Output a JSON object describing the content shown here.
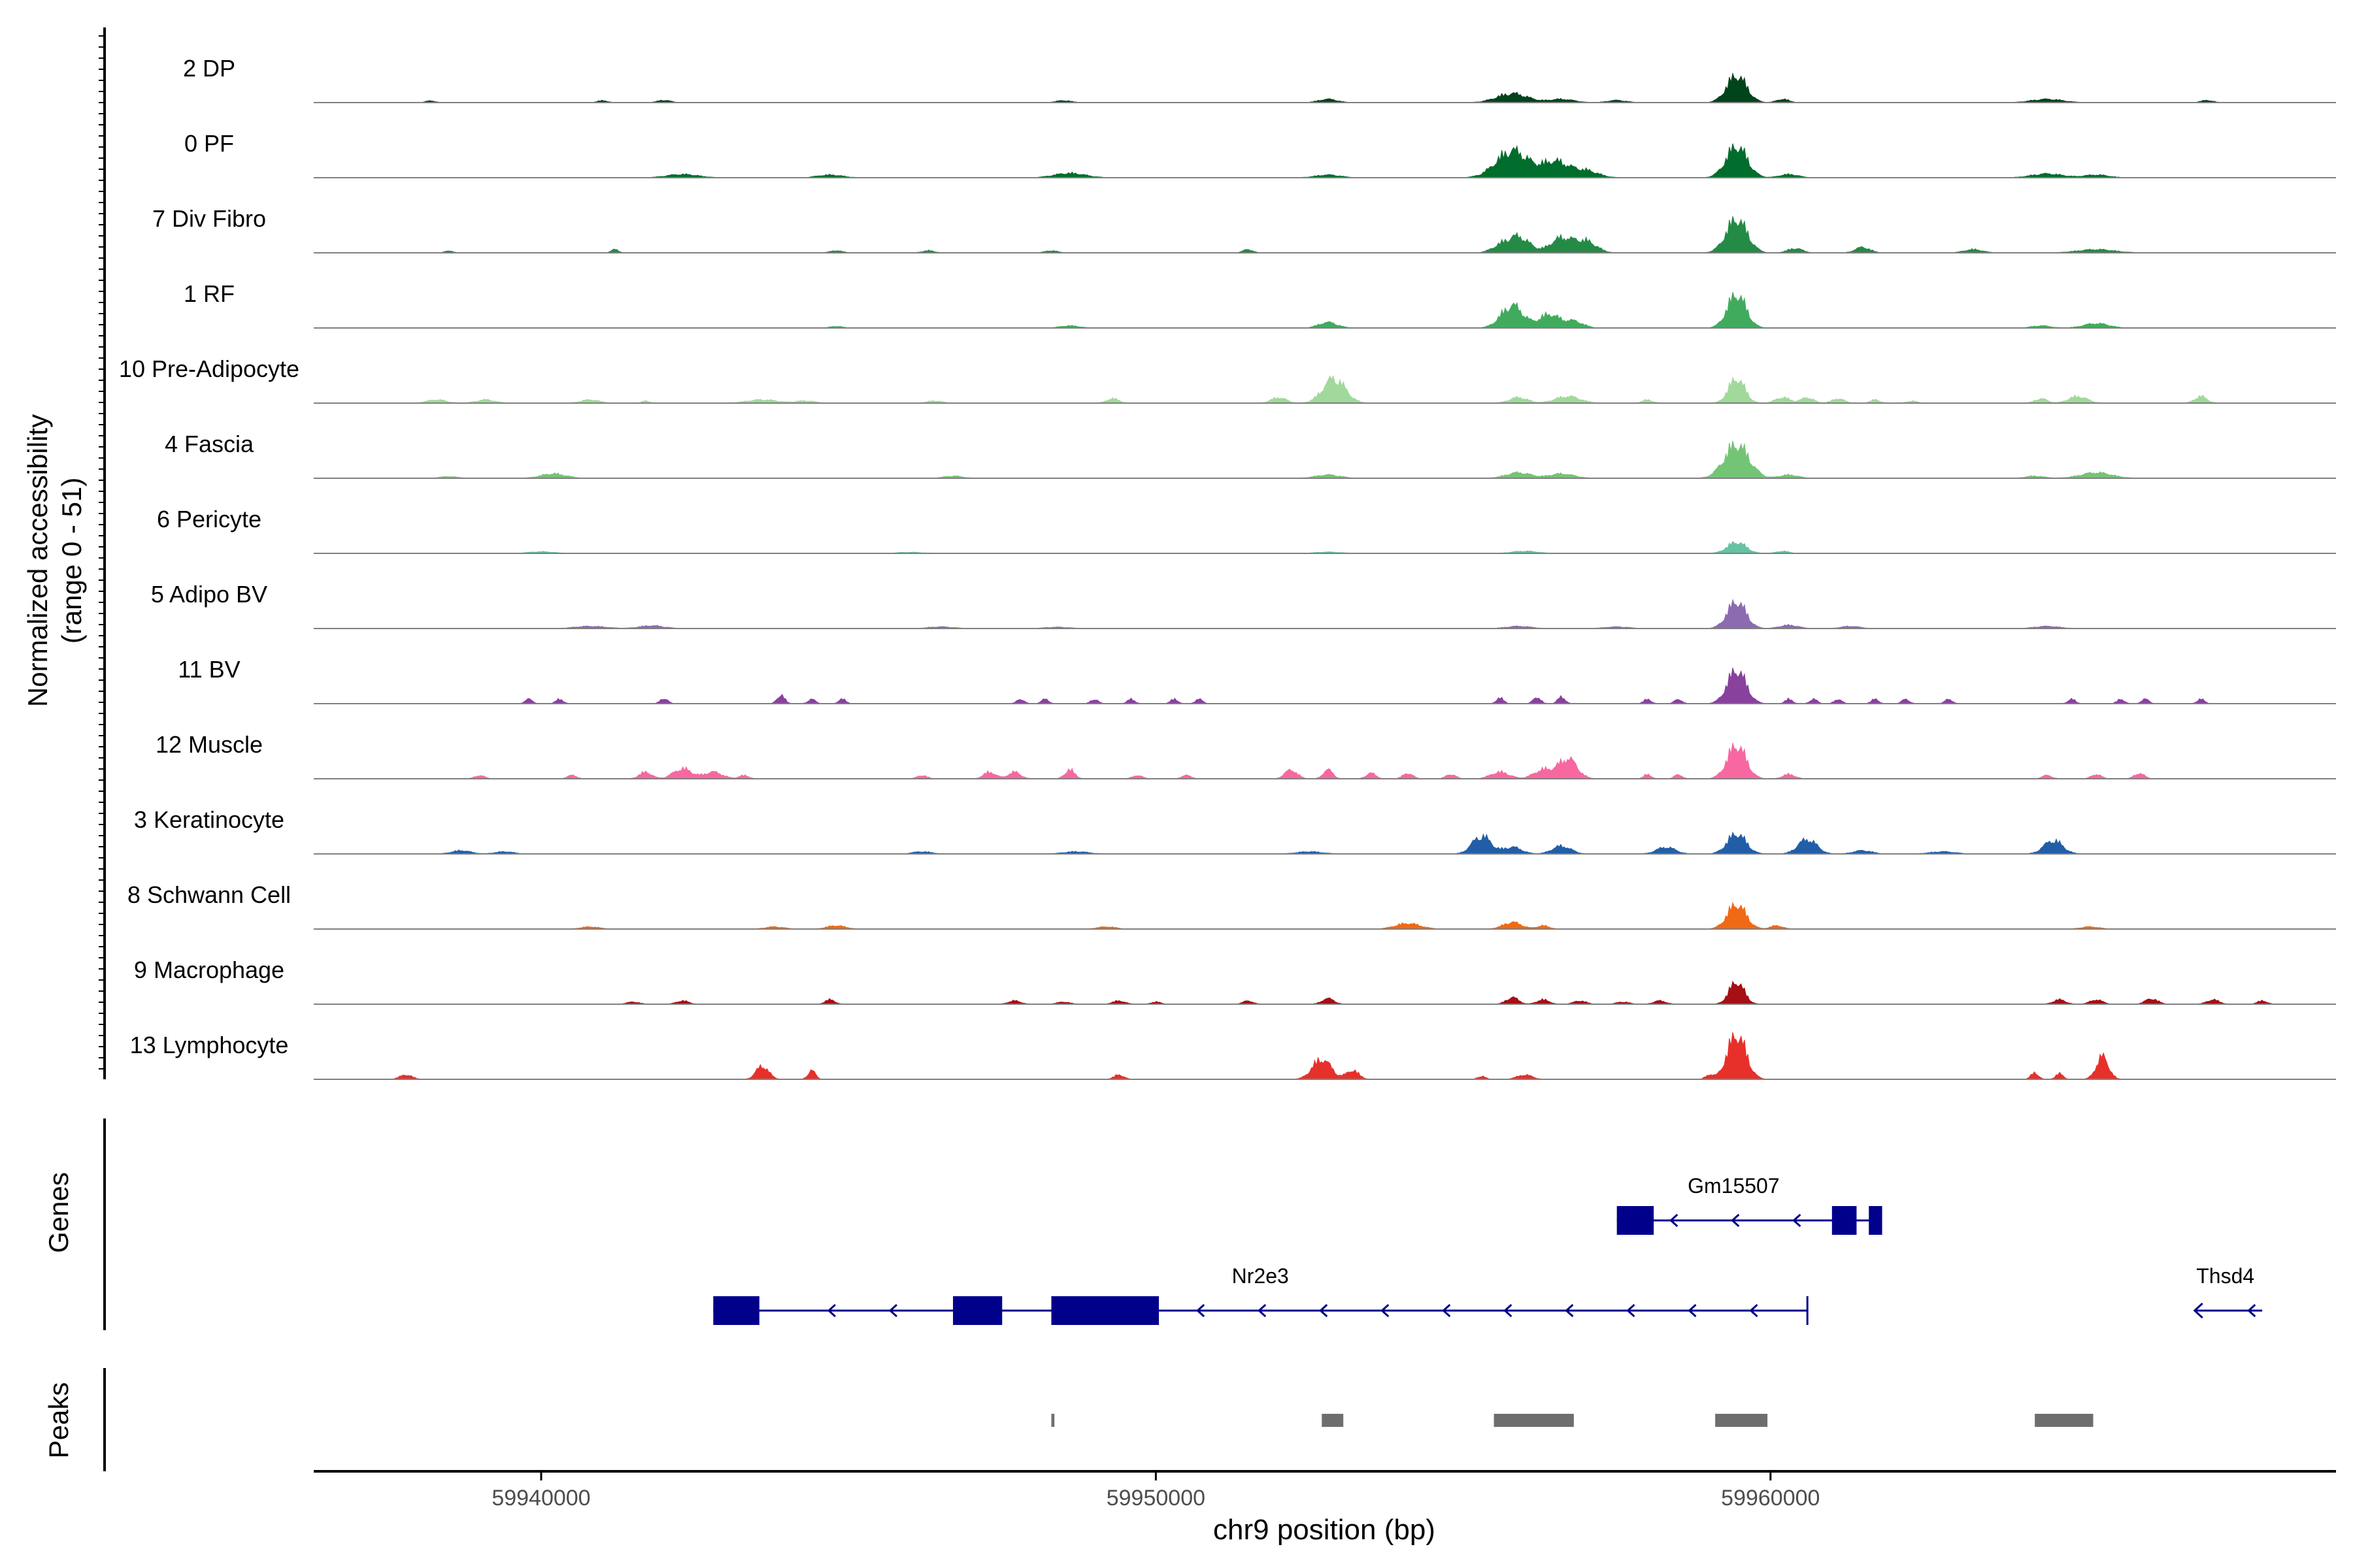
{
  "chart_data": {
    "type": "area",
    "title": "",
    "ylabel": "Normalized accessibility",
    "ylabel_range": "(range 0 - 51)",
    "xlabel": "chr9 position (bp)",
    "x_range": [
      59936300,
      59969200
    ],
    "y_range": [
      0,
      51
    ],
    "x_ticks": [
      {
        "value": 59940000,
        "label": "59940000"
      },
      {
        "value": 59950000,
        "label": "59950000"
      },
      {
        "value": 59960000,
        "label": "59960000"
      }
    ],
    "series": [
      {
        "name": "2 DP",
        "color": "#00441b",
        "peaks": [
          [
            59938200,
            1.5,
            80
          ],
          [
            59941000,
            1.8,
            80
          ],
          [
            59942000,
            2.2,
            100
          ],
          [
            59948500,
            1.8,
            120
          ],
          [
            59952800,
            3,
            150
          ],
          [
            59955800,
            8,
            250
          ],
          [
            59956600,
            3,
            200
          ],
          [
            59957500,
            2,
            150
          ],
          [
            59959450,
            24,
            160
          ],
          [
            59960200,
            3,
            100
          ],
          [
            59964500,
            3,
            250
          ],
          [
            59967100,
            2,
            100
          ]
        ]
      },
      {
        "name": "0 PF",
        "color": "#006d2c",
        "peaks": [
          [
            59942300,
            3,
            250
          ],
          [
            59944700,
            2.5,
            200
          ],
          [
            59948600,
            4,
            250
          ],
          [
            59952800,
            2.5,
            200
          ],
          [
            59955800,
            24,
            260
          ],
          [
            59956500,
            14,
            220
          ],
          [
            59957000,
            6,
            200
          ],
          [
            59959450,
            28,
            170
          ],
          [
            59960300,
            3,
            150
          ],
          [
            59964500,
            3.5,
            250
          ],
          [
            59965300,
            2.5,
            200
          ]
        ]
      },
      {
        "name": "7 Div Fibro",
        "color": "#238b45",
        "peaks": [
          [
            59938500,
            2,
            60
          ],
          [
            59941200,
            3,
            60
          ],
          [
            59944800,
            2,
            100
          ],
          [
            59946300,
            2,
            100
          ],
          [
            59948300,
            2,
            100
          ],
          [
            59951500,
            3,
            80
          ],
          [
            59955600,
            5,
            150
          ],
          [
            59955900,
            14,
            180
          ],
          [
            59956600,
            13,
            180
          ],
          [
            59957000,
            10,
            170
          ],
          [
            59959450,
            30,
            170
          ],
          [
            59960400,
            4,
            120
          ],
          [
            59961500,
            5,
            120
          ],
          [
            59963300,
            3,
            150
          ],
          [
            59965300,
            3,
            300
          ]
        ]
      },
      {
        "name": "1 RF",
        "color": "#41ab5d",
        "peaks": [
          [
            59944800,
            1.5,
            100
          ],
          [
            59948600,
            2,
            150
          ],
          [
            59952800,
            5,
            150
          ],
          [
            59955800,
            20,
            180
          ],
          [
            59956400,
            12,
            160
          ],
          [
            59956800,
            6,
            150
          ],
          [
            59959450,
            30,
            150
          ],
          [
            59965300,
            4,
            200
          ],
          [
            59964400,
            2,
            150
          ]
        ]
      },
      {
        "name": "10 Pre-Adipocyte",
        "color": "#a1d99b",
        "peaks": [
          [
            59938300,
            3,
            150
          ],
          [
            59939100,
            3,
            150
          ],
          [
            59940800,
            3,
            150
          ],
          [
            59941700,
            2,
            60
          ],
          [
            59943600,
            3,
            250
          ],
          [
            59944300,
            2,
            150
          ],
          [
            59946400,
            2,
            120
          ],
          [
            59949300,
            4,
            100
          ],
          [
            59952000,
            5,
            120
          ],
          [
            59952900,
            22,
            180
          ],
          [
            59955900,
            5,
            150
          ],
          [
            59956700,
            6,
            200
          ],
          [
            59958000,
            3,
            80
          ],
          [
            59959450,
            22,
            130
          ],
          [
            59960200,
            5,
            120
          ],
          [
            59960600,
            5,
            100
          ],
          [
            59961100,
            4,
            100
          ],
          [
            59961700,
            3,
            80
          ],
          [
            59962300,
            2,
            80
          ],
          [
            59964400,
            4,
            100
          ],
          [
            59965000,
            6,
            150
          ],
          [
            59967000,
            6,
            100
          ]
        ]
      },
      {
        "name": "4 Fascia",
        "color": "#74c476",
        "peaks": [
          [
            59938500,
            1.5,
            150
          ],
          [
            59940200,
            4,
            200
          ],
          [
            59946700,
            2,
            150
          ],
          [
            59952800,
            3,
            200
          ],
          [
            59955900,
            5,
            200
          ],
          [
            59956600,
            4,
            200
          ],
          [
            59959450,
            30,
            200
          ],
          [
            59960300,
            3,
            150
          ],
          [
            59964300,
            2,
            150
          ],
          [
            59965300,
            5,
            250
          ]
        ]
      },
      {
        "name": "6 Pericyte",
        "color": "#66c2a4",
        "peaks": [
          [
            59940000,
            1.5,
            200
          ],
          [
            59946000,
            1,
            200
          ],
          [
            59952800,
            1.2,
            200
          ],
          [
            59956000,
            2,
            200
          ],
          [
            59959450,
            10,
            150
          ],
          [
            59960200,
            2,
            100
          ]
        ]
      },
      {
        "name": "5 Adipo BV",
        "color": "#8c6bb1",
        "peaks": [
          [
            59940800,
            2,
            250
          ],
          [
            59941800,
            2.5,
            200
          ],
          [
            59946500,
            1.5,
            200
          ],
          [
            59948400,
            1.2,
            200
          ],
          [
            59955900,
            2,
            200
          ],
          [
            59957500,
            1.5,
            200
          ],
          [
            59959450,
            24,
            150
          ],
          [
            59960300,
            3,
            150
          ],
          [
            59961300,
            2,
            150
          ],
          [
            59964500,
            2,
            200
          ]
        ]
      },
      {
        "name": "11 BV",
        "color": "#88419d",
        "peaks": [
          [
            59939800,
            4,
            60
          ],
          [
            59940300,
            4,
            60
          ],
          [
            59942000,
            5,
            60
          ],
          [
            59943900,
            8,
            60
          ],
          [
            59944400,
            4,
            60
          ],
          [
            59944900,
            4,
            60
          ],
          [
            59947800,
            4,
            60
          ],
          [
            59948200,
            4,
            60
          ],
          [
            59949000,
            4,
            60
          ],
          [
            59949600,
            4,
            60
          ],
          [
            59950300,
            4,
            60
          ],
          [
            59950700,
            4,
            60
          ],
          [
            59955600,
            5,
            60
          ],
          [
            59956200,
            6,
            60
          ],
          [
            59956600,
            6,
            60
          ],
          [
            59958000,
            4,
            60
          ],
          [
            59958500,
            4,
            60
          ],
          [
            59959450,
            30,
            150
          ],
          [
            59960300,
            4,
            60
          ],
          [
            59960700,
            4,
            60
          ],
          [
            59961100,
            4,
            60
          ],
          [
            59961700,
            4,
            60
          ],
          [
            59962200,
            4,
            60
          ],
          [
            59962900,
            4,
            60
          ],
          [
            59964900,
            4,
            60
          ],
          [
            59965700,
            4,
            60
          ],
          [
            59966100,
            4,
            60
          ],
          [
            59967000,
            4,
            60
          ]
        ]
      },
      {
        "name": "12 Muscle",
        "color": "#f768a1",
        "peaks": [
          [
            59939000,
            3,
            80
          ],
          [
            59940500,
            3,
            80
          ],
          [
            59941700,
            6,
            100
          ],
          [
            59942300,
            9,
            150
          ],
          [
            59942800,
            6,
            150
          ],
          [
            59943300,
            3,
            80
          ],
          [
            59946200,
            3,
            80
          ],
          [
            59947300,
            6,
            100
          ],
          [
            59947700,
            6,
            100
          ],
          [
            59948600,
            8,
            80
          ],
          [
            59949700,
            3,
            80
          ],
          [
            59950500,
            3,
            80
          ],
          [
            59952200,
            8,
            100
          ],
          [
            59952800,
            8,
            80
          ],
          [
            59953500,
            5,
            80
          ],
          [
            59954100,
            5,
            80
          ],
          [
            59954800,
            4,
            80
          ],
          [
            59955600,
            6,
            150
          ],
          [
            59956300,
            8,
            150
          ],
          [
            59956700,
            18,
            150
          ],
          [
            59958000,
            4,
            60
          ],
          [
            59958500,
            4,
            60
          ],
          [
            59959450,
            30,
            150
          ],
          [
            59960300,
            4,
            100
          ],
          [
            59964500,
            3,
            80
          ],
          [
            59965300,
            4,
            80
          ],
          [
            59966000,
            5,
            80
          ]
        ]
      },
      {
        "name": "3 Keratinocyte",
        "color": "#225ea8",
        "peaks": [
          [
            59938700,
            3,
            150
          ],
          [
            59939400,
            2,
            150
          ],
          [
            59946200,
            2,
            150
          ],
          [
            59948700,
            2,
            200
          ],
          [
            59952500,
            2,
            200
          ],
          [
            59955300,
            16,
            150
          ],
          [
            59955800,
            6,
            150
          ],
          [
            59956600,
            7,
            150
          ],
          [
            59958300,
            6,
            150
          ],
          [
            59959450,
            18,
            150
          ],
          [
            59960600,
            13,
            150
          ],
          [
            59961500,
            3,
            150
          ],
          [
            59962800,
            2,
            200
          ],
          [
            59964600,
            12,
            150
          ]
        ]
      },
      {
        "name": "8 Schwann Cell",
        "color": "#f16913",
        "peaks": [
          [
            59940800,
            2,
            150
          ],
          [
            59943800,
            2,
            150
          ],
          [
            59944800,
            3,
            150
          ],
          [
            59949200,
            2,
            150
          ],
          [
            59954100,
            5,
            200
          ],
          [
            59955800,
            6,
            150
          ],
          [
            59956300,
            3,
            100
          ],
          [
            59959450,
            22,
            150
          ],
          [
            59960100,
            3,
            100
          ],
          [
            59965200,
            2,
            150
          ]
        ]
      },
      {
        "name": "9 Macrophage",
        "color": "#a50f15",
        "peaks": [
          [
            59941500,
            2,
            100
          ],
          [
            59942300,
            3,
            100
          ],
          [
            59944700,
            4,
            80
          ],
          [
            59947700,
            3,
            100
          ],
          [
            59948500,
            2,
            100
          ],
          [
            59949400,
            3,
            100
          ],
          [
            59950000,
            2,
            80
          ],
          [
            59951500,
            3,
            80
          ],
          [
            59952800,
            5,
            100
          ],
          [
            59955800,
            6,
            100
          ],
          [
            59956300,
            4,
            100
          ],
          [
            59956900,
            3,
            100
          ],
          [
            59957600,
            2,
            100
          ],
          [
            59958200,
            3,
            100
          ],
          [
            59959450,
            20,
            120
          ],
          [
            59964700,
            4,
            100
          ],
          [
            59965300,
            4,
            100
          ],
          [
            59966200,
            5,
            100
          ],
          [
            59967200,
            4,
            100
          ],
          [
            59968000,
            3,
            80
          ]
        ]
      },
      {
        "name": "13 Lymphocyte",
        "color": "#e7302a",
        "peaks": [
          [
            59937800,
            4,
            100
          ],
          [
            59943600,
            12,
            100
          ],
          [
            59944400,
            8,
            60
          ],
          [
            59949400,
            4,
            80
          ],
          [
            59952700,
            18,
            150
          ],
          [
            59953200,
            8,
            100
          ],
          [
            59955300,
            3,
            60
          ],
          [
            59956000,
            4,
            120
          ],
          [
            59959000,
            4,
            60
          ],
          [
            59959450,
            40,
            150
          ],
          [
            59964300,
            6,
            60
          ],
          [
            59964700,
            5,
            60
          ],
          [
            59965400,
            20,
            100
          ]
        ]
      }
    ],
    "genes": [
      {
        "name": "Gm15507",
        "strand": "-",
        "start": 59957500,
        "end": 59961800,
        "exons": [
          [
            59957500,
            59958100
          ],
          [
            59961000,
            59961400
          ],
          [
            59961600,
            59961800
          ]
        ]
      },
      {
        "name": "Nr2e3",
        "strand": "-",
        "start": 59942800,
        "end": 59960600,
        "exons": [
          [
            59942800,
            59943550
          ],
          [
            59946700,
            59947500
          ],
          [
            59948300,
            59950050
          ]
        ]
      },
      {
        "name": "Thsd4",
        "strand": "-",
        "start": 59966900,
        "end": 59968000,
        "exons": []
      }
    ],
    "peaks_track": [
      [
        59948300,
        59948350
      ],
      [
        59952700,
        59953050
      ],
      [
        59955500,
        59956800
      ],
      [
        59959100,
        59959950
      ],
      [
        59964300,
        59965250
      ]
    ],
    "track_labels": {
      "genes": "Genes",
      "peaks": "Peaks"
    }
  }
}
